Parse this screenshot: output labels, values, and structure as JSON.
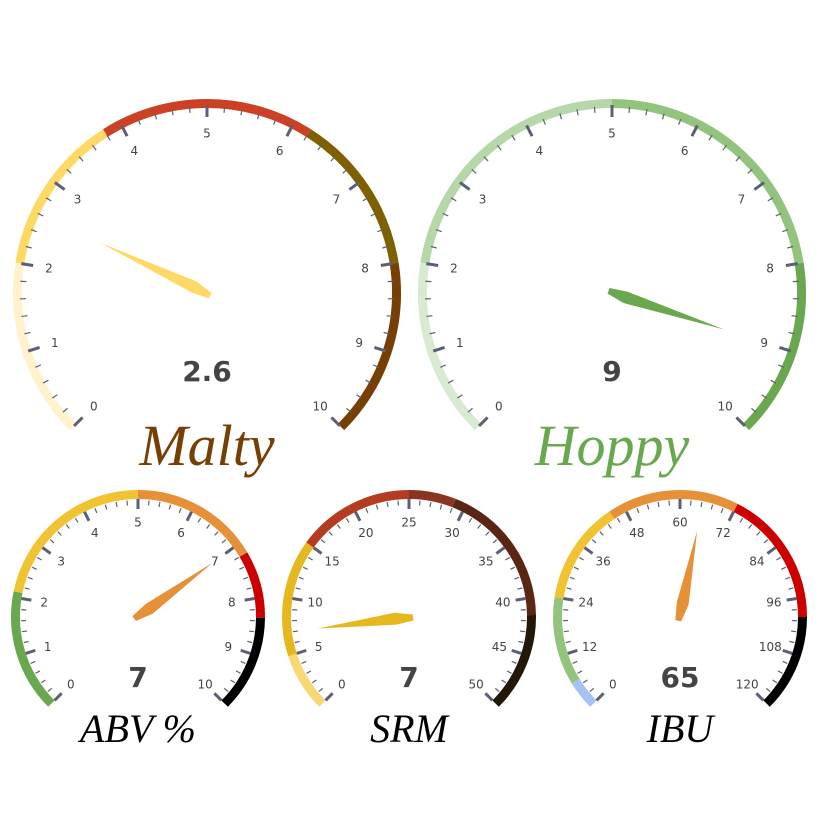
{
  "chart_data": [
    {
      "type": "gauge",
      "title": "Malty",
      "title_color": "#783F04",
      "min": 0,
      "max": 10,
      "value": 2.6,
      "value_label": "2.6",
      "major_step": 1,
      "minor_divisions": 5,
      "needle_color": "#FFD966",
      "bands": [
        {
          "from": 0,
          "to": 2,
          "color": "#FFF2CC"
        },
        {
          "from": 2,
          "to": 3.8,
          "color": "#FFD966"
        },
        {
          "from": 3.8,
          "to": 6.2,
          "color": "#CC4125"
        },
        {
          "from": 6.2,
          "to": 8,
          "color": "#7F6000"
        },
        {
          "from": 8,
          "to": 10,
          "color": "#783F04"
        }
      ]
    },
    {
      "type": "gauge",
      "title": "Hoppy",
      "title_color": "#6AA84F",
      "min": 0,
      "max": 10,
      "value": 9,
      "value_label": "9",
      "major_step": 1,
      "minor_divisions": 5,
      "needle_color": "#6AA84F",
      "bands": [
        {
          "from": 0,
          "to": 2,
          "color": "#D9EAD3"
        },
        {
          "from": 2,
          "to": 5,
          "color": "#B6D7A8"
        },
        {
          "from": 5,
          "to": 8,
          "color": "#93C47D"
        },
        {
          "from": 8,
          "to": 10,
          "color": "#6AA84F"
        }
      ]
    },
    {
      "type": "gauge",
      "title": "ABV %",
      "title_color": "#000000",
      "min": 0,
      "max": 10,
      "value": 7,
      "value_label": "7",
      "major_step": 1,
      "minor_divisions": 5,
      "needle_color": "#E69138",
      "bands": [
        {
          "from": 0,
          "to": 2.1,
          "color": "#6AA84F"
        },
        {
          "from": 2.1,
          "to": 5,
          "color": "#F1C232"
        },
        {
          "from": 5,
          "to": 7.2,
          "color": "#E69138"
        },
        {
          "from": 7.2,
          "to": 8.35,
          "color": "#CC0000"
        },
        {
          "from": 8.35,
          "to": 10,
          "color": "#000000"
        }
      ]
    },
    {
      "type": "gauge",
      "title": "SRM",
      "title_color": "#000000",
      "min": 0,
      "max": 50,
      "value": 7,
      "value_label": "7",
      "major_step": 5,
      "minor_divisions": 5,
      "needle_color": "#E6B820",
      "bands": [
        {
          "from": 0,
          "to": 5,
          "color": "#F8D775"
        },
        {
          "from": 5,
          "to": 15,
          "color": "#E6B820"
        },
        {
          "from": 15,
          "to": 25,
          "color": "#B43C20"
        },
        {
          "from": 25,
          "to": 29,
          "color": "#8B3520"
        },
        {
          "from": 29,
          "to": 41.5,
          "color": "#5A2613"
        },
        {
          "from": 41.5,
          "to": 50,
          "color": "#231709"
        }
      ]
    },
    {
      "type": "gauge",
      "title": "IBU",
      "title_color": "#000000",
      "min": 0,
      "max": 120,
      "value": 65,
      "value_label": "65",
      "major_step": 12,
      "minor_divisions": 5,
      "needle_color": "#E69138",
      "bands": [
        {
          "from": 0,
          "to": 6,
          "color": "#A4C2F4"
        },
        {
          "from": 6,
          "to": 24,
          "color": "#93C47D"
        },
        {
          "from": 24,
          "to": 45,
          "color": "#F1C232"
        },
        {
          "from": 45,
          "to": 72,
          "color": "#E69138"
        },
        {
          "from": 72,
          "to": 100,
          "color": "#CC0000"
        },
        {
          "from": 100,
          "to": 120,
          "color": "#000000"
        }
      ]
    }
  ]
}
